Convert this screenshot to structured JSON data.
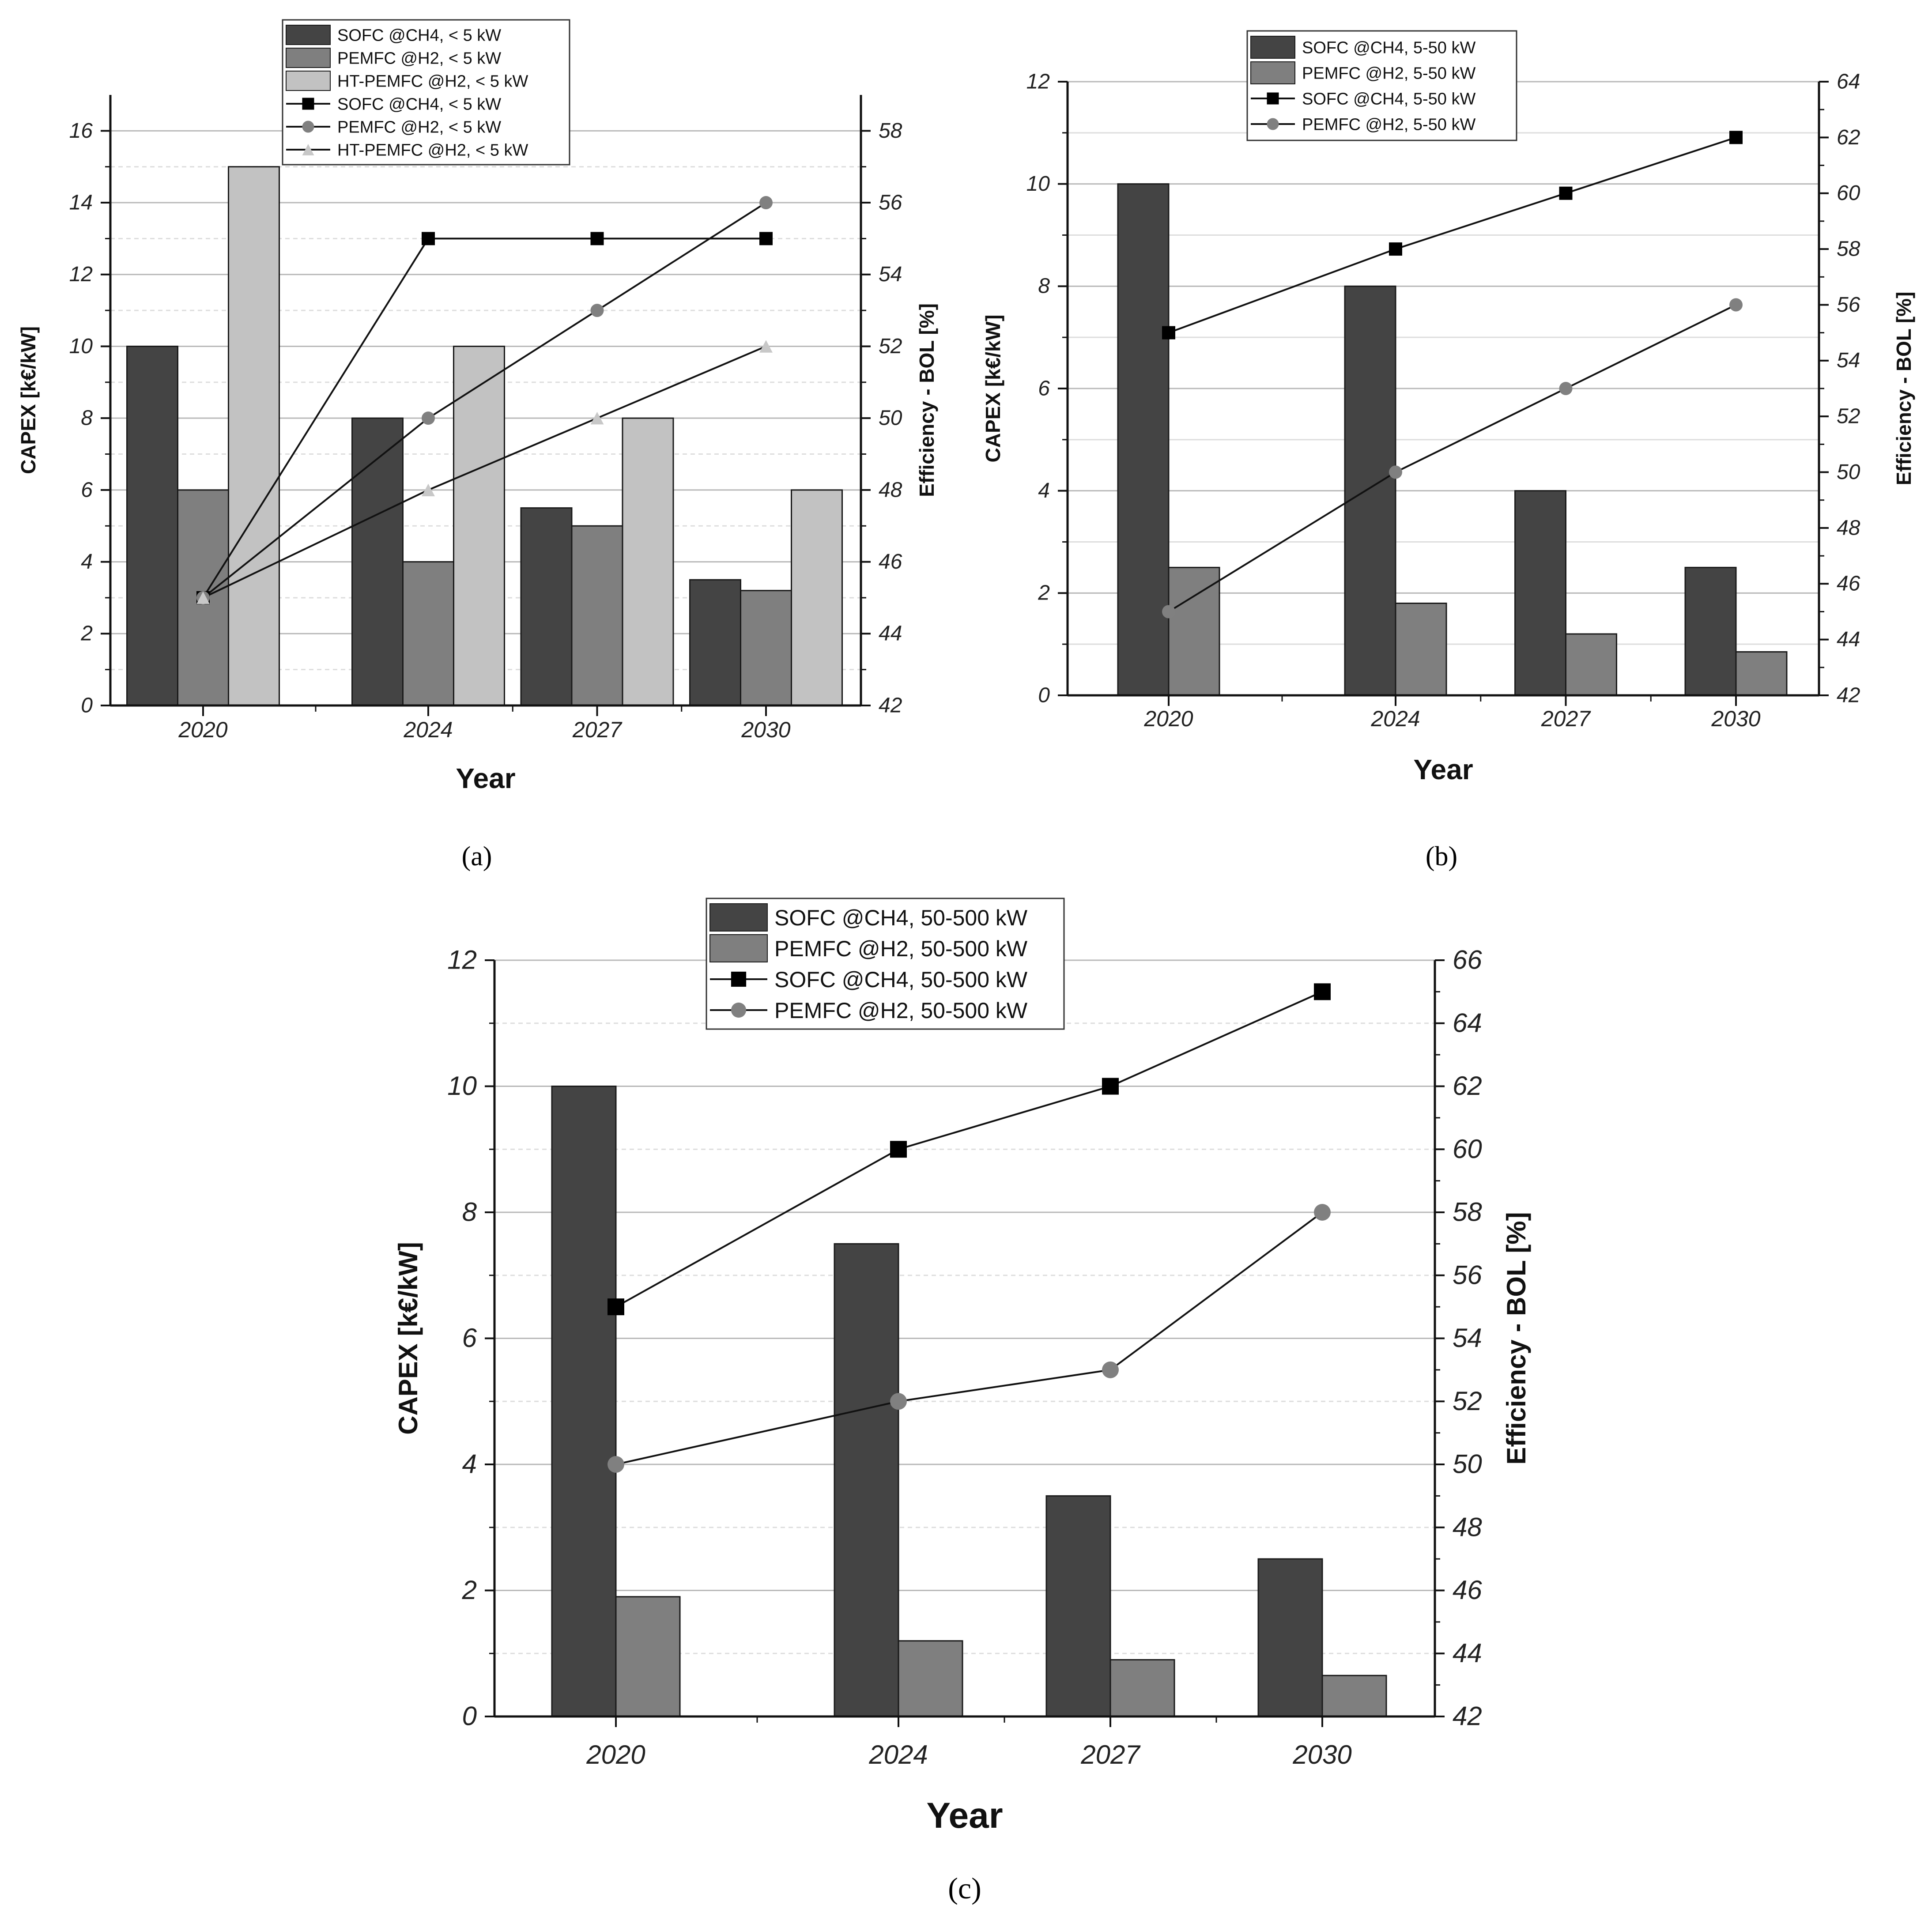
{
  "colors": {
    "sofc_bar": "#444444",
    "pemfc_bar": "#7f7f7f",
    "htpemfc_bar": "#c2c2c2",
    "sofc_line": "#000000",
    "pemfc_marker": "#808080",
    "htpemfc_marker": "#c8c8c8",
    "grid_major": "#b8b8b8",
    "grid_minor": "#dddddd"
  },
  "chart_data": [
    {
      "id": "a",
      "panel_label": "(a)",
      "type": "bar+line",
      "categories": [
        "2020",
        "2024",
        "2027",
        "2030"
      ],
      "cat_pos": [
        0,
        4,
        7,
        10
      ],
      "xlabel": "Year",
      "ylabel": "CAPEX [k€/kW]",
      "ylim": [
        0,
        17
      ],
      "yticks": [
        0,
        2,
        4,
        6,
        8,
        10,
        12,
        14,
        16
      ],
      "y2label": "Efficiency - BOL [%]",
      "y2lim": [
        42,
        59
      ],
      "y2ticks": [
        42,
        44,
        46,
        48,
        50,
        52,
        54,
        56,
        58
      ],
      "bar_series": [
        {
          "name": "SOFC @CH4, < 5 kW",
          "values": [
            10,
            8,
            5.5,
            3.5
          ],
          "color": "#444444"
        },
        {
          "name": "PEMFC @H2, < 5 kW",
          "values": [
            6,
            4,
            5,
            3.2
          ],
          "color": "#7f7f7f"
        },
        {
          "name": "HT-PEMFC @H2, < 5 kW",
          "values": [
            15,
            10,
            8,
            6
          ],
          "color": "#c2c2c2"
        }
      ],
      "line_series": [
        {
          "name": "SOFC @CH4, < 5 kW",
          "values": [
            45,
            55,
            55,
            55
          ],
          "marker": "square",
          "color": "#000000"
        },
        {
          "name": "PEMFC @H2, < 5 kW",
          "values": [
            45,
            50,
            53,
            56
          ],
          "marker": "circle",
          "color": "#808080"
        },
        {
          "name": "HT-PEMFC @H2, < 5 kW",
          "values": [
            45,
            48,
            50,
            52
          ],
          "marker": "triangle",
          "color": "#c8c8c8"
        }
      ]
    },
    {
      "id": "b",
      "panel_label": "(b)",
      "type": "bar+line",
      "categories": [
        "2020",
        "2024",
        "2027",
        "2030"
      ],
      "cat_pos": [
        0,
        4,
        7,
        10
      ],
      "xlabel": "Year",
      "ylabel": "CAPEX [k€/kW]",
      "ylim": [
        0,
        12
      ],
      "yticks": [
        0,
        2,
        4,
        6,
        8,
        10,
        12
      ],
      "y2label": "Efficiency - BOL [%]",
      "y2lim": [
        42,
        64
      ],
      "y2ticks": [
        42,
        44,
        46,
        48,
        50,
        52,
        54,
        56,
        58,
        60,
        62,
        64
      ],
      "bar_series": [
        {
          "name": "SOFC @CH4, 5-50 kW",
          "values": [
            10,
            8,
            4,
            2.5
          ],
          "color": "#444444"
        },
        {
          "name": "PEMFC @H2, 5-50 kW",
          "values": [
            2.5,
            1.8,
            1.2,
            0.85
          ],
          "color": "#7f7f7f"
        }
      ],
      "line_series": [
        {
          "name": "SOFC @CH4, 5-50 kW",
          "values": [
            55,
            58,
            60,
            62
          ],
          "marker": "square",
          "color": "#000000"
        },
        {
          "name": "PEMFC @H2, 5-50 kW",
          "values": [
            45,
            50,
            53,
            56
          ],
          "marker": "circle",
          "color": "#808080"
        }
      ]
    },
    {
      "id": "c",
      "panel_label": "(c)",
      "type": "bar+line",
      "categories": [
        "2020",
        "2024",
        "2027",
        "2030"
      ],
      "cat_pos": [
        0,
        4,
        7,
        10
      ],
      "xlabel": "Year",
      "ylabel": "CAPEX [k€/kW]",
      "ylim": [
        0,
        12
      ],
      "yticks": [
        0,
        2,
        4,
        6,
        8,
        10,
        12
      ],
      "y2label": "Efficiency - BOL [%]",
      "y2lim": [
        42,
        66
      ],
      "y2ticks": [
        42,
        44,
        46,
        48,
        50,
        52,
        54,
        56,
        58,
        60,
        62,
        64,
        66
      ],
      "bar_series": [
        {
          "name": "SOFC @CH4, 50-500 kW",
          "values": [
            10,
            7.5,
            3.5,
            2.5
          ],
          "color": "#444444"
        },
        {
          "name": "PEMFC @H2, 50-500 kW",
          "values": [
            1.9,
            1.2,
            0.9,
            0.65
          ],
          "color": "#7f7f7f"
        }
      ],
      "line_series": [
        {
          "name": "SOFC @CH4, 50-500 kW",
          "values": [
            55,
            60,
            62,
            65
          ],
          "marker": "square",
          "color": "#000000"
        },
        {
          "name": "PEMFC @H2, 50-500 kW",
          "values": [
            50,
            52,
            53,
            58
          ],
          "marker": "circle",
          "color": "#808080"
        }
      ]
    }
  ]
}
